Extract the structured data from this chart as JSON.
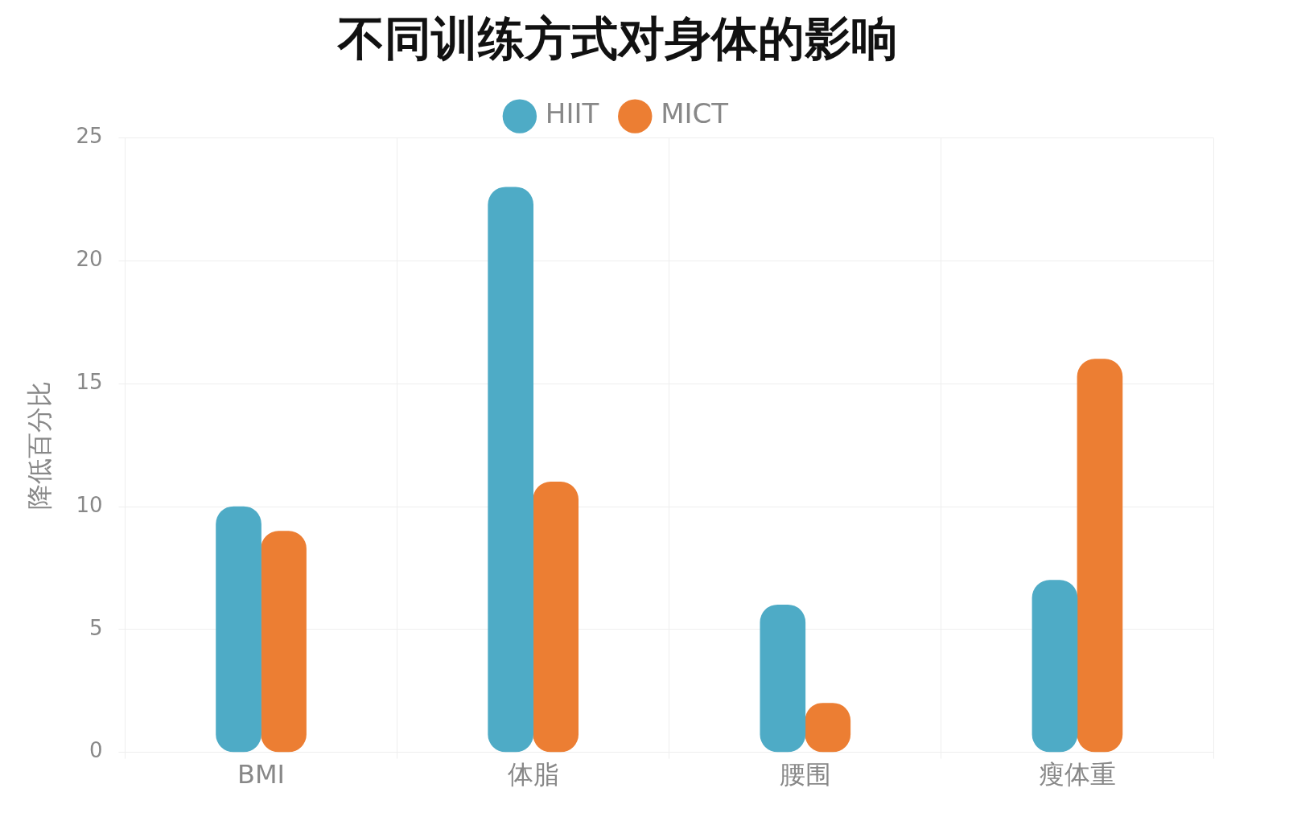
{
  "chart_data": {
    "type": "bar",
    "title": "不同训练方式对身体的影响",
    "ylabel": "降低百分比",
    "categories": [
      "BMI",
      "体脂",
      "腰围",
      "瘦体重"
    ],
    "series": [
      {
        "name": "HIIT",
        "color": "#4eabc6",
        "values": [
          10,
          23,
          6,
          7
        ]
      },
      {
        "name": "MICT",
        "color": "#ec7e33",
        "values": [
          9,
          11,
          2,
          16
        ]
      }
    ],
    "ylim": [
      0,
      25
    ],
    "yticks": [
      0,
      5,
      10,
      15,
      20,
      25
    ],
    "grid": true,
    "legend": "top"
  }
}
